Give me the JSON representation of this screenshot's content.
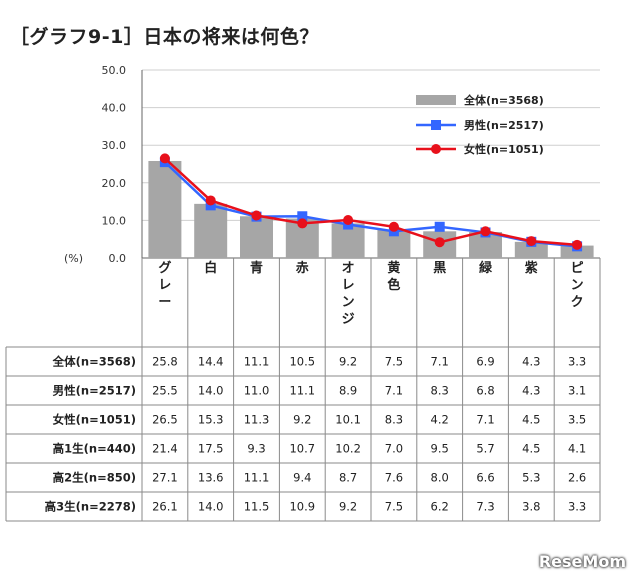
{
  "title": "［グラフ9-1］日本の将来は何色？",
  "watermark": "ReseMom",
  "colors": {
    "bar": "#a6a6a6",
    "male": "#3366ff",
    "female": "#e8101b",
    "grid": "#cfcfcf"
  },
  "chart_data": {
    "type": "bar",
    "title": "［グラフ9-1］日本の将来は何色？",
    "ylabel": "(%)",
    "ylim": [
      0,
      50
    ],
    "yticks": [
      "50.0",
      "40.0",
      "30.0",
      "20.0",
      "10.0",
      "0.0"
    ],
    "categories": [
      "グレー",
      "白",
      "青",
      "赤",
      "オレンジ",
      "黄色",
      "黒",
      "緑",
      "紫",
      "ピンク"
    ],
    "legend_position": "top-right",
    "series": [
      {
        "name": "全体(n=3568)",
        "kind": "bar",
        "values": [
          25.8,
          14.4,
          11.1,
          10.5,
          9.2,
          7.5,
          7.1,
          6.9,
          4.3,
          3.3
        ]
      },
      {
        "name": "男性(n=2517)",
        "kind": "line",
        "marker": "square",
        "values": [
          25.5,
          14.0,
          11.0,
          11.1,
          8.9,
          7.1,
          8.3,
          6.8,
          4.3,
          3.1
        ]
      },
      {
        "name": "女性(n=1051)",
        "kind": "line",
        "marker": "circle",
        "values": [
          26.5,
          15.3,
          11.3,
          9.2,
          10.1,
          8.3,
          4.2,
          7.1,
          4.5,
          3.5
        ]
      }
    ],
    "table": [
      {
        "label": "全体(n=3568)",
        "values": [
          "25.8",
          "14.4",
          "11.1",
          "10.5",
          "9.2",
          "7.5",
          "7.1",
          "6.9",
          "4.3",
          "3.3"
        ]
      },
      {
        "label": "男性(n=2517)",
        "values": [
          "25.5",
          "14.0",
          "11.0",
          "11.1",
          "8.9",
          "7.1",
          "8.3",
          "6.8",
          "4.3",
          "3.1"
        ]
      },
      {
        "label": "女性(n=1051)",
        "values": [
          "26.5",
          "15.3",
          "11.3",
          "9.2",
          "10.1",
          "8.3",
          "4.2",
          "7.1",
          "4.5",
          "3.5"
        ]
      },
      {
        "label": "高1生(n=440)",
        "values": [
          "21.4",
          "17.5",
          "9.3",
          "10.7",
          "10.2",
          "7.0",
          "9.5",
          "5.7",
          "4.5",
          "4.1"
        ]
      },
      {
        "label": "高2生(n=850)",
        "values": [
          "27.1",
          "13.6",
          "11.1",
          "9.4",
          "8.7",
          "7.6",
          "8.0",
          "6.6",
          "5.3",
          "2.6"
        ]
      },
      {
        "label": "高3生(n=2278)",
        "values": [
          "26.1",
          "14.0",
          "11.5",
          "10.9",
          "9.2",
          "7.5",
          "6.2",
          "7.3",
          "3.8",
          "3.3"
        ]
      }
    ]
  }
}
